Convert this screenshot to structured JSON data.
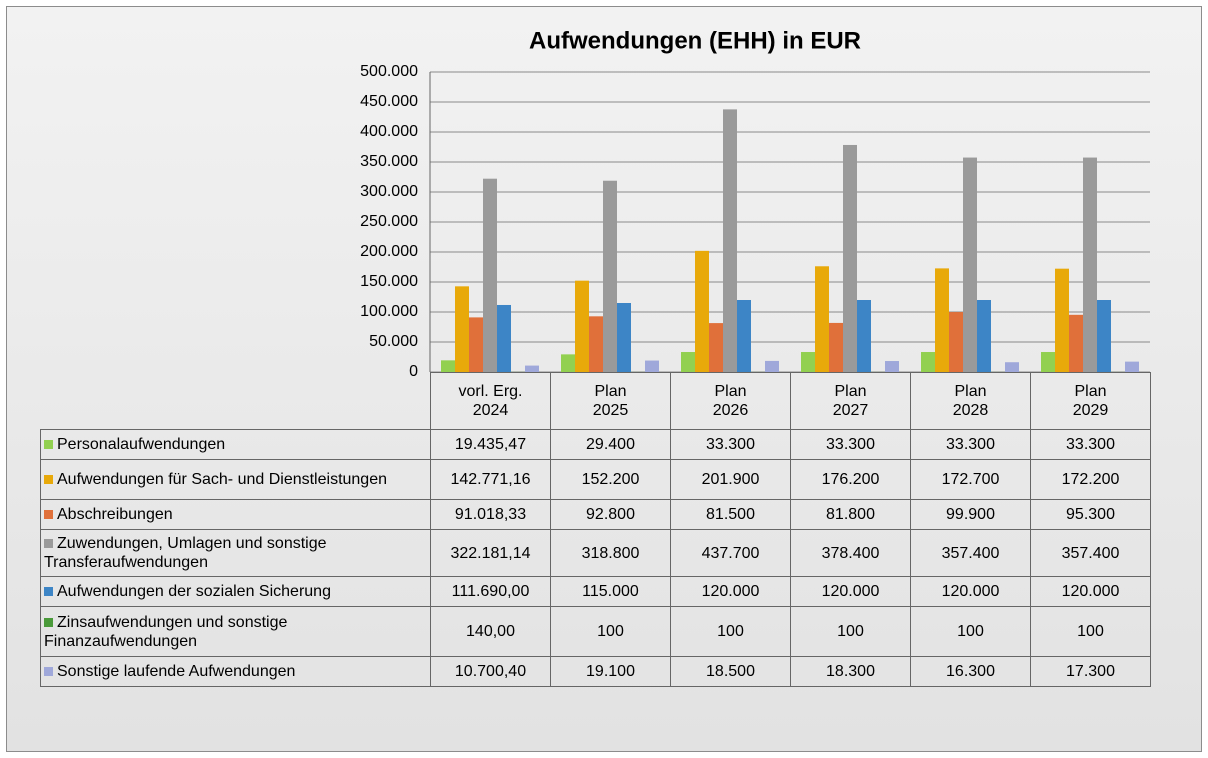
{
  "chart_data": {
    "type": "bar",
    "title": "Aufwendungen (EHH) in EUR",
    "categories": [
      [
        "vorl. Erg.",
        "2024"
      ],
      [
        "Plan",
        "2025"
      ],
      [
        "Plan",
        "2026"
      ],
      [
        "Plan",
        "2027"
      ],
      [
        "Plan",
        "2028"
      ],
      [
        "Plan",
        "2029"
      ]
    ],
    "ylim": [
      0,
      500000
    ],
    "yticks": [
      0,
      {
        "value": 50000,
        "label": "50.000"
      },
      {
        "value": 100000,
        "label": "100.000"
      },
      {
        "value": 150000,
        "label": "150.000"
      },
      {
        "value": 200000,
        "label": "200.000"
      },
      {
        "value": 250000,
        "label": "250.000"
      },
      {
        "value": 300000,
        "label": "300.000"
      },
      {
        "value": 350000,
        "label": "350.000"
      },
      {
        "value": 400000,
        "label": "400.000"
      },
      {
        "value": 450000,
        "label": "450.000"
      },
      {
        "value": 500000,
        "label": "500.000"
      }
    ],
    "grid": true,
    "series": [
      {
        "name": "Personalaufwendungen",
        "color": "#92d050",
        "values": [
          19435.47,
          29400,
          33300,
          33300,
          33300,
          33300
        ],
        "value_labels": [
          "19.435,47",
          "29.400",
          "33.300",
          "33.300",
          "33.300",
          "33.300"
        ]
      },
      {
        "name": "Aufwendungen für Sach- und Dienstleistungen",
        "color": "#e8a90a",
        "values": [
          142771.16,
          152200,
          201900,
          176200,
          172700,
          172200
        ],
        "value_labels": [
          "142.771,16",
          "152.200",
          "201.900",
          "176.200",
          "172.700",
          "172.200"
        ]
      },
      {
        "name": "Abschreibungen",
        "color": "#e0703a",
        "values": [
          91018.33,
          92800,
          81500,
          81800,
          99900,
          95300
        ],
        "value_labels": [
          "91.018,33",
          "92.800",
          "81.500",
          "81.800",
          "99.900",
          "95.300"
        ]
      },
      {
        "name": "Zuwendungen, Umlagen und sonstige Transferaufwendungen",
        "color": "#9a9a9a",
        "values": [
          322181.14,
          318800,
          437700,
          378400,
          357400,
          357400
        ],
        "value_labels": [
          "322.181,14",
          "318.800",
          "437.700",
          "378.400",
          "357.400",
          "357.400"
        ]
      },
      {
        "name": "Aufwendungen der sozialen Sicherung",
        "color": "#3d85c6",
        "values": [
          111690,
          115000,
          120000,
          120000,
          120000,
          120000
        ],
        "value_labels": [
          "111.690,00",
          "115.000",
          "120.000",
          "120.000",
          "120.000",
          "120.000"
        ]
      },
      {
        "name": "Zinsaufwendungen und sonstige Finanzaufwendungen",
        "color": "#4a9a3a",
        "values": [
          140,
          100,
          100,
          100,
          100,
          100
        ],
        "value_labels": [
          "140,00",
          "100",
          "100",
          "100",
          "100",
          "100"
        ]
      },
      {
        "name": "Sonstige laufende Aufwendungen",
        "color": "#9fa8da",
        "values": [
          10700.4,
          19100,
          18500,
          18300,
          16300,
          17300
        ],
        "value_labels": [
          "10.700,40",
          "19.100",
          "18.500",
          "18.300",
          "16.300",
          "17.300"
        ]
      }
    ]
  }
}
